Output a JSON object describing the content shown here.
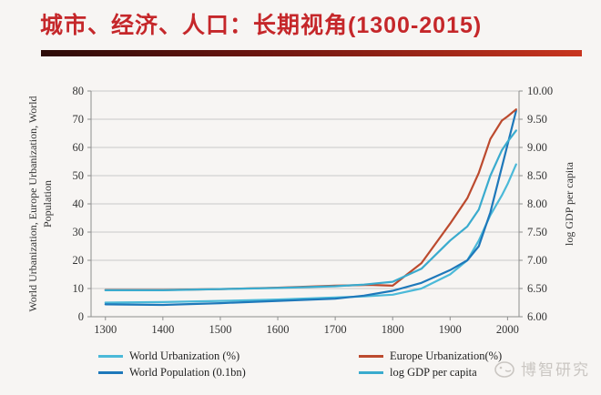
{
  "page": {
    "background": "#f7f5f3"
  },
  "header": {
    "title": "城市、经济、人口：长期视角(1300-2015)",
    "title_color": "#c5272a",
    "bar_gradient_left": "#2c0b08",
    "bar_gradient_mid": "#6b150f",
    "bar_gradient_right": "#c8351f"
  },
  "watermark": {
    "text": "博智研究",
    "color": "#cac6c2"
  },
  "chart_data": {
    "type": "line",
    "x_range": [
      1275,
      2020
    ],
    "x_ticks": [
      "1300",
      "1400",
      "1500",
      "1600",
      "1700",
      "1800",
      "1900",
      "2000"
    ],
    "left_axis": {
      "title": "World Urbanization, Europe Urbanization, World Population",
      "title_line1": "World Urbanization, Europe Urbanization, World",
      "title_line2": "Population",
      "min": 0,
      "max": 80,
      "ticks": [
        0,
        10,
        20,
        30,
        40,
        50,
        60,
        70,
        80
      ]
    },
    "right_axis": {
      "title": "log GDP per capita",
      "min": 6,
      "max": 10,
      "ticks": [
        6,
        6.5,
        7,
        7.5,
        8,
        8.5,
        9,
        9.5,
        10
      ],
      "decimals": 2
    },
    "grid": "horizontal-only",
    "legend_position": "bottom",
    "series": [
      {
        "name": "World Urbanization (%)",
        "color": "#4bb9d8",
        "axis": "left",
        "points": [
          [
            1300,
            5.0
          ],
          [
            1400,
            5.2
          ],
          [
            1500,
            5.6
          ],
          [
            1600,
            6.1
          ],
          [
            1700,
            6.8
          ],
          [
            1750,
            7.2
          ],
          [
            1800,
            7.8
          ],
          [
            1850,
            10
          ],
          [
            1900,
            15
          ],
          [
            1930,
            20
          ],
          [
            1950,
            27
          ],
          [
            1970,
            36
          ],
          [
            1990,
            43
          ],
          [
            2000,
            47
          ],
          [
            2015,
            54
          ]
        ]
      },
      {
        "name": "World Population (0.1bn)",
        "color": "#1e78ba",
        "axis": "left",
        "points": [
          [
            1300,
            4.4
          ],
          [
            1400,
            4.2
          ],
          [
            1500,
            4.8
          ],
          [
            1600,
            5.6
          ],
          [
            1700,
            6.4
          ],
          [
            1750,
            7.5
          ],
          [
            1800,
            9.2
          ],
          [
            1850,
            12
          ],
          [
            1900,
            16.5
          ],
          [
            1930,
            20
          ],
          [
            1950,
            25
          ],
          [
            1970,
            37
          ],
          [
            1990,
            53
          ],
          [
            2000,
            61
          ],
          [
            2015,
            73
          ]
        ]
      },
      {
        "name": "Europe Urbanization(%)",
        "color": "#bc4a2e",
        "axis": "left",
        "points": [
          [
            1300,
            9.5
          ],
          [
            1400,
            9.5
          ],
          [
            1500,
            9.8
          ],
          [
            1600,
            10.3
          ],
          [
            1700,
            11
          ],
          [
            1760,
            11.3
          ],
          [
            1800,
            11
          ],
          [
            1850,
            19
          ],
          [
            1900,
            33
          ],
          [
            1930,
            42
          ],
          [
            1950,
            51
          ],
          [
            1970,
            63
          ],
          [
            1990,
            69.5
          ],
          [
            2000,
            71
          ],
          [
            2015,
            73.5
          ]
        ]
      },
      {
        "name": "log GDP per capita",
        "color": "#3aabce",
        "axis": "right",
        "points": [
          [
            1300,
            6.47
          ],
          [
            1400,
            6.47
          ],
          [
            1500,
            6.49
          ],
          [
            1600,
            6.51
          ],
          [
            1700,
            6.54
          ],
          [
            1750,
            6.57
          ],
          [
            1800,
            6.62
          ],
          [
            1850,
            6.85
          ],
          [
            1900,
            7.35
          ],
          [
            1930,
            7.6
          ],
          [
            1950,
            7.9
          ],
          [
            1970,
            8.5
          ],
          [
            1990,
            8.95
          ],
          [
            2000,
            9.1
          ],
          [
            2015,
            9.3
          ]
        ]
      }
    ]
  }
}
